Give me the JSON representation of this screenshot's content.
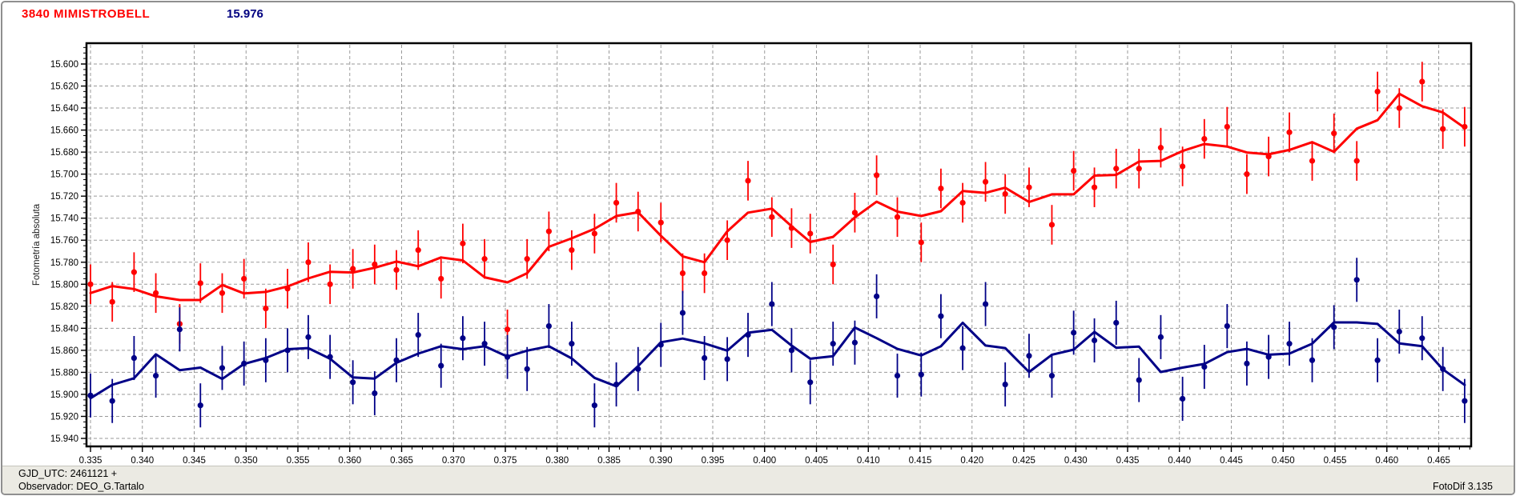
{
  "header": {
    "title": "3840 MIMISTROBELL",
    "title_color": "#ff0000",
    "value": "15.976",
    "value_color": "#000080"
  },
  "statusbar": {
    "line1": "GJD_UTC: 2461121 +",
    "line2": "Observador: DEO_G.Tartalo",
    "right": "FotoDif 3.135",
    "background": "#ebeae3"
  },
  "chart_data": {
    "type": "scatter",
    "title": "",
    "xlabel": "",
    "ylabel": "Fotometría absoluta",
    "y_direction": "down",
    "grid": {
      "show": true,
      "color": "#9a9a9a",
      "dash": "4 3"
    },
    "x_axis": {
      "min": 0.335,
      "max": 0.4683,
      "tick_from": 0.335,
      "tick_to": 0.465,
      "tick_step": 0.005,
      "minor_step": 0.001,
      "format_decimals": 3
    },
    "y_axis": {
      "min": 15.581,
      "max": 15.947,
      "tick_from": 15.6,
      "tick_to": 15.94,
      "tick_step": 0.02,
      "minor_step": 0.005,
      "format_decimals": 3
    },
    "trend": "moving-average-3",
    "x": [
      0.335,
      0.3371,
      0.3392,
      0.3413,
      0.3436,
      0.3456,
      0.3477,
      0.3498,
      0.3519,
      0.354,
      0.356,
      0.3581,
      0.3603,
      0.3624,
      0.3645,
      0.3666,
      0.3688,
      0.3709,
      0.373,
      0.3752,
      0.3771,
      0.3792,
      0.3814,
      0.3836,
      0.3857,
      0.3878,
      0.39,
      0.3921,
      0.3942,
      0.3964,
      0.3984,
      0.4007,
      0.4026,
      0.4044,
      0.4066,
      0.4087,
      0.4108,
      0.4128,
      0.4151,
      0.417,
      0.4191,
      0.4213,
      0.4232,
      0.4255,
      0.4277,
      0.4298,
      0.4318,
      0.4339,
      0.4361,
      0.4382,
      0.4403,
      0.4424,
      0.4446,
      0.4465,
      0.4486,
      0.4506,
      0.4528,
      0.4549,
      0.4571,
      0.4591,
      0.4612,
      0.4634,
      0.4654,
      0.4675
    ],
    "series": [
      {
        "name": "red",
        "color": "#ff0000",
        "err": 0.018,
        "values": [
          15.8,
          15.816,
          15.789,
          15.808,
          15.836,
          15.799,
          15.808,
          15.795,
          15.822,
          15.804,
          15.78,
          15.8,
          15.786,
          15.782,
          15.787,
          15.769,
          15.795,
          15.763,
          15.777,
          15.841,
          15.777,
          15.752,
          15.769,
          15.754,
          15.726,
          15.734,
          15.744,
          15.79,
          15.79,
          15.76,
          15.706,
          15.739,
          15.749,
          15.754,
          15.782,
          15.735,
          15.701,
          15.739,
          15.762,
          15.713,
          15.726,
          15.707,
          15.718,
          15.712,
          15.746,
          15.697,
          15.712,
          15.695,
          15.695,
          15.676,
          15.693,
          15.668,
          15.657,
          15.7,
          15.684,
          15.662,
          15.688,
          15.663,
          15.688,
          15.625,
          15.64,
          15.616,
          15.659,
          15.657
        ]
      },
      {
        "name": "blue",
        "color": "#000087",
        "err": 0.02,
        "values": [
          15.901,
          15.906,
          15.867,
          15.883,
          15.841,
          15.91,
          15.876,
          15.872,
          15.869,
          15.86,
          15.848,
          15.866,
          15.889,
          15.899,
          15.869,
          15.846,
          15.874,
          15.849,
          15.854,
          15.866,
          15.877,
          15.838,
          15.854,
          15.91,
          15.891,
          15.877,
          15.855,
          15.826,
          15.867,
          15.868,
          15.846,
          15.818,
          15.86,
          15.889,
          15.854,
          15.853,
          15.811,
          15.883,
          15.882,
          15.829,
          15.858,
          15.818,
          15.891,
          15.865,
          15.883,
          15.844,
          15.851,
          15.835,
          15.887,
          15.848,
          15.904,
          15.875,
          15.838,
          15.872,
          15.866,
          15.854,
          15.869,
          15.839,
          15.796,
          15.869,
          15.843,
          15.849,
          15.877,
          15.906
        ]
      }
    ]
  }
}
